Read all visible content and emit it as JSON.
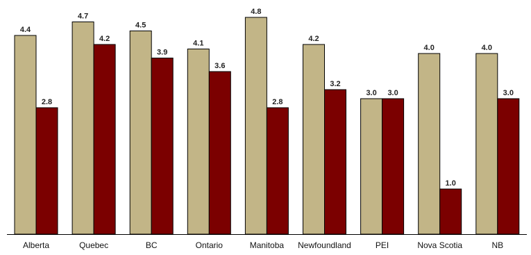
{
  "chart_data": {
    "type": "bar",
    "categories": [
      "Alberta",
      "Quebec",
      "BC",
      "Ontario",
      "Manitoba",
      "Newfoundland",
      "PEI",
      "Nova Scotia",
      "NB"
    ],
    "series": [
      {
        "values": [
          4.4,
          4.7,
          4.5,
          4.1,
          4.8,
          4.2,
          3.0,
          4.0,
          4.0
        ],
        "color": "#c2b587"
      },
      {
        "values": [
          2.8,
          4.2,
          3.9,
          3.6,
          2.8,
          3.2,
          3.0,
          1.0,
          3.0
        ],
        "color": "#7b0000"
      }
    ],
    "data_labels": [
      [
        "4.4",
        "4.7",
        "4.5",
        "4.1",
        "4.8",
        "4.2",
        "3.0",
        "4.0",
        "4.0"
      ],
      [
        "2.8",
        "4.2",
        "3.9",
        "3.6",
        "2.8",
        "3.2",
        "3.0",
        "1.0",
        "3.0"
      ]
    ],
    "title": "",
    "xlabel": "",
    "ylabel": "",
    "ylim": [
      0,
      5
    ],
    "grid": false,
    "legend": "none"
  }
}
